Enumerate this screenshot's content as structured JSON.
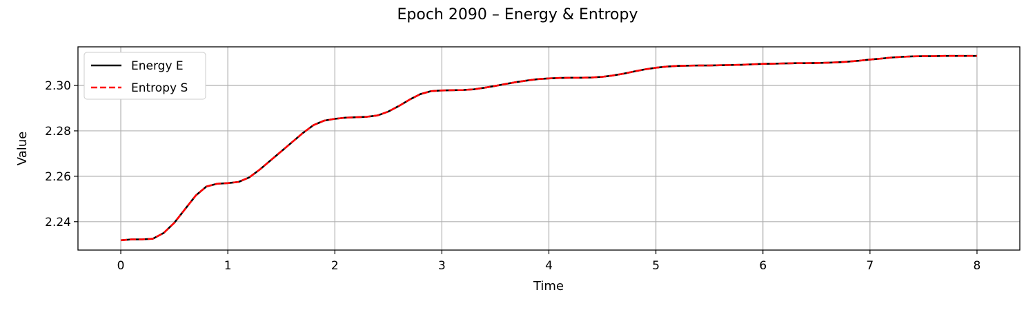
{
  "chart_data": {
    "type": "line",
    "title": "Epoch 2090 – Energy & Entropy",
    "xlabel": "Time",
    "ylabel": "Value",
    "xlim": [
      -0.4,
      8.4
    ],
    "ylim": [
      2.2275,
      2.317
    ],
    "xticks": [
      0,
      1,
      2,
      3,
      4,
      5,
      6,
      7,
      8
    ],
    "yticks": [
      2.24,
      2.26,
      2.28,
      2.3
    ],
    "ytick_labels": [
      "2.24",
      "2.26",
      "2.28",
      "2.30"
    ],
    "grid": true,
    "legend_position": "top-left",
    "x": [
      0,
      0.1,
      0.2,
      0.3,
      0.4,
      0.5,
      0.6,
      0.7,
      0.8,
      0.9,
      1.0,
      1.1,
      1.2,
      1.3,
      1.4,
      1.5,
      1.6,
      1.7,
      1.8,
      1.9,
      2.0,
      2.1,
      2.2,
      2.3,
      2.4,
      2.5,
      2.6,
      2.7,
      2.8,
      2.9,
      3.0,
      3.1,
      3.2,
      3.3,
      3.4,
      3.5,
      3.6,
      3.7,
      3.8,
      3.9,
      4.0,
      4.1,
      4.2,
      4.3,
      4.4,
      4.5,
      4.6,
      4.7,
      4.8,
      4.9,
      5.0,
      5.1,
      5.2,
      5.3,
      5.4,
      5.5,
      5.6,
      5.7,
      5.8,
      5.9,
      6.0,
      6.1,
      6.2,
      6.3,
      6.4,
      6.5,
      6.6,
      6.7,
      6.8,
      6.9,
      7.0,
      7.1,
      7.2,
      7.3,
      7.4,
      7.5,
      7.6,
      7.7,
      7.8,
      7.9,
      8.0
    ],
    "series": [
      {
        "name": "Energy E",
        "color": "#000000",
        "style": "solid",
        "values": [
          2.2318,
          2.2322,
          2.2322,
          2.2325,
          2.235,
          2.2395,
          2.2455,
          2.2515,
          2.2555,
          2.2567,
          2.257,
          2.2575,
          2.2595,
          2.263,
          2.267,
          2.271,
          2.275,
          2.279,
          2.2825,
          2.2845,
          2.2853,
          2.2858,
          2.286,
          2.2862,
          2.2868,
          2.2885,
          2.291,
          2.2938,
          2.2962,
          2.2975,
          2.2978,
          2.2979,
          2.298,
          2.2983,
          2.299,
          2.2998,
          2.3007,
          2.3015,
          2.3022,
          2.3028,
          2.3031,
          2.3033,
          2.3034,
          2.3034,
          2.3035,
          2.3038,
          2.3044,
          2.3052,
          2.3062,
          2.3071,
          2.3078,
          2.3083,
          2.3086,
          2.3087,
          2.3088,
          2.3088,
          2.3089,
          2.309,
          2.3091,
          2.3093,
          2.3095,
          2.3096,
          2.3097,
          2.3098,
          2.3098,
          2.3099,
          2.31,
          2.3102,
          2.3105,
          2.3109,
          2.3114,
          2.3118,
          2.3123,
          2.3126,
          2.3128,
          2.3129,
          2.3129,
          2.313,
          2.313,
          2.313,
          2.313
        ]
      },
      {
        "name": "Entropy S",
        "color": "#ff0000",
        "style": "dashed",
        "values": [
          2.2318,
          2.2322,
          2.2322,
          2.2325,
          2.235,
          2.2395,
          2.2455,
          2.2515,
          2.2555,
          2.2567,
          2.257,
          2.2575,
          2.2595,
          2.263,
          2.267,
          2.271,
          2.275,
          2.279,
          2.2825,
          2.2845,
          2.2853,
          2.2858,
          2.286,
          2.2862,
          2.2868,
          2.2885,
          2.291,
          2.2938,
          2.2962,
          2.2975,
          2.2978,
          2.2979,
          2.298,
          2.2983,
          2.299,
          2.2998,
          2.3007,
          2.3015,
          2.3022,
          2.3028,
          2.3031,
          2.3033,
          2.3034,
          2.3034,
          2.3035,
          2.3038,
          2.3044,
          2.3052,
          2.3062,
          2.3071,
          2.3078,
          2.3083,
          2.3086,
          2.3087,
          2.3088,
          2.3088,
          2.3089,
          2.309,
          2.3091,
          2.3093,
          2.3095,
          2.3096,
          2.3097,
          2.3098,
          2.3098,
          2.3099,
          2.31,
          2.3102,
          2.3105,
          2.3109,
          2.3114,
          2.3118,
          2.3123,
          2.3126,
          2.3128,
          2.3129,
          2.3129,
          2.313,
          2.313,
          2.313,
          2.313
        ]
      }
    ]
  }
}
